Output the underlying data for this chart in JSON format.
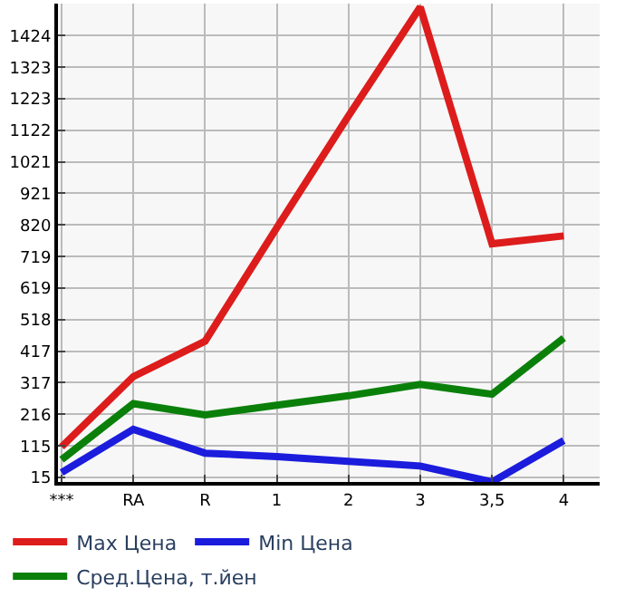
{
  "chart_data": {
    "type": "line",
    "categories": [
      "***",
      "RA",
      "R",
      "1",
      "2",
      "3",
      "3,5",
      "4"
    ],
    "series": [
      {
        "name": "Max Цена",
        "color": "#dd1c1c",
        "values": [
          112,
          336,
          449,
          811,
          1168,
          1515,
          760,
          785
        ]
      },
      {
        "name": "Min Цена",
        "color": "#1c1cdd",
        "values": [
          30,
          168,
          92,
          81,
          66,
          51,
          0,
          132
        ]
      },
      {
        "name": "Сред.Цена, т.йен",
        "color": "#0a800a",
        "values": [
          71,
          250,
          214,
          245,
          275,
          311,
          280,
          459
        ]
      }
    ],
    "ylim": [
      0,
      1526
    ],
    "yticks": [
      15,
      115,
      216,
      317,
      417,
      518,
      619,
      719,
      820,
      921,
      1021,
      1122,
      1223,
      1323,
      1424
    ],
    "grid": true,
    "legend": "bottom",
    "marker": "none",
    "line_style": "solid"
  }
}
